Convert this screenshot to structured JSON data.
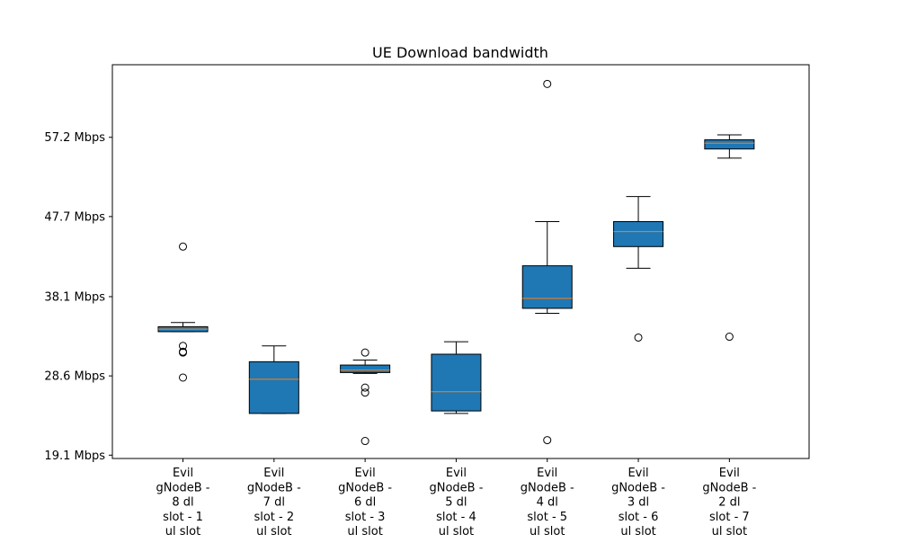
{
  "chart_data": {
    "type": "boxplot",
    "title": "UE Download bandwidth",
    "xlabel": "",
    "ylabel": "",
    "ylim": [
      18.7,
      65.9
    ],
    "grid": false,
    "legend": "none",
    "y_ticks": [
      {
        "value": 19.1,
        "label": "19.1 Mbps"
      },
      {
        "value": 28.6,
        "label": "28.6 Mbps"
      },
      {
        "value": 38.1,
        "label": "38.1 Mbps"
      },
      {
        "value": 47.7,
        "label": "47.7 Mbps"
      },
      {
        "value": 57.2,
        "label": "57.2 Mbps"
      }
    ],
    "box_color": "#1f77b4",
    "median_color": "#ff7f0e",
    "categories": [
      [
        "Evil",
        "gNodeB -",
        "8 dl",
        "slot - 1",
        "ul slot"
      ],
      [
        "Evil",
        "gNodeB -",
        "7 dl",
        "slot - 2",
        "ul slot"
      ],
      [
        "Evil",
        "gNodeB -",
        "6 dl",
        "slot - 3",
        "ul slot"
      ],
      [
        "Evil",
        "gNodeB -",
        "5 dl",
        "slot - 4",
        "ul slot"
      ],
      [
        "Evil",
        "gNodeB -",
        "4 dl",
        "slot - 5",
        "ul slot"
      ],
      [
        "Evil",
        "gNodeB -",
        "3 dl",
        "slot - 6",
        "ul slot"
      ],
      [
        "Evil",
        "gNodeB -",
        "2 dl",
        "slot - 7",
        "ul slot"
      ]
    ],
    "boxes": [
      {
        "whislo": 33.9,
        "q1": 33.9,
        "med": 34.2,
        "q3": 34.5,
        "whishi": 35.0,
        "fliers": [
          44.1,
          32.2,
          31.5,
          31.4,
          28.4
        ]
      },
      {
        "whislo": 24.1,
        "q1": 24.1,
        "med": 28.2,
        "q3": 30.3,
        "whishi": 32.2,
        "fliers": []
      },
      {
        "whislo": 28.9,
        "q1": 29.0,
        "med": 29.3,
        "q3": 29.9,
        "whishi": 30.5,
        "fliers": [
          31.4,
          27.2,
          26.6,
          20.8
        ]
      },
      {
        "whislo": 24.1,
        "q1": 24.4,
        "med": 26.7,
        "q3": 31.2,
        "whishi": 32.7,
        "fliers": []
      },
      {
        "whislo": 36.1,
        "q1": 36.7,
        "med": 37.9,
        "q3": 41.8,
        "whishi": 47.1,
        "fliers": [
          63.6,
          20.9
        ]
      },
      {
        "whislo": 41.5,
        "q1": 44.1,
        "med": 45.9,
        "q3": 47.1,
        "whishi": 50.1,
        "fliers": [
          33.2
        ]
      },
      {
        "whislo": 54.7,
        "q1": 55.8,
        "med": 56.5,
        "q3": 56.9,
        "whishi": 57.5,
        "fliers": [
          33.3
        ]
      }
    ]
  }
}
